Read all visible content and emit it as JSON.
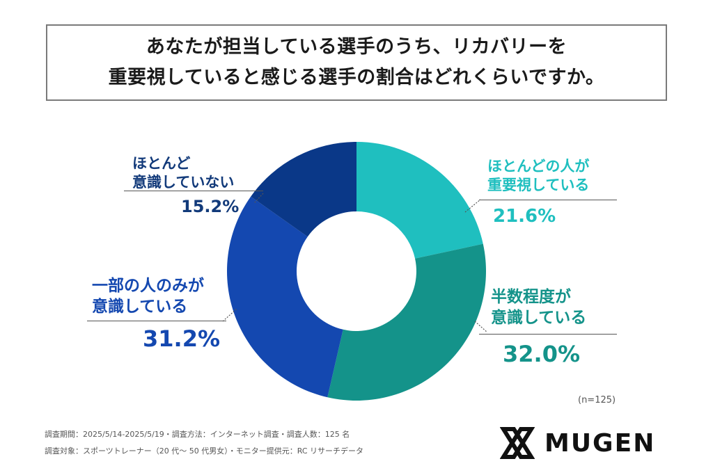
{
  "title": {
    "line1": "あなたが担当している選手のうち、リカバリーを",
    "line2": "重要視していると感じる選手の割合はどれくらいですか。"
  },
  "chart_data": {
    "type": "pie",
    "style": "donut",
    "categories": [
      "ほとんどの人が重要視している",
      "半数程度が意識している",
      "一部の人のみが意識している",
      "ほとんど意識していない"
    ],
    "values": [
      21.6,
      32.0,
      31.2,
      15.2
    ],
    "value_labels": [
      "21.6%",
      "32.0%",
      "31.2%",
      "15.2%"
    ],
    "colors": [
      "#1fbfbf",
      "#14938a",
      "#1448b0",
      "#0a3888"
    ],
    "label_colors": [
      "#1fbfbf",
      "#14938a",
      "#1448b0",
      "#123a7a"
    ],
    "label_lines": [
      [
        "ほとんどの人が",
        "重要視している"
      ],
      [
        "半数程度が",
        "意識している"
      ],
      [
        "一部の人のみが",
        "意識している"
      ],
      [
        "ほとんど",
        "意識していない"
      ]
    ],
    "n_note": "(n=125)"
  },
  "footer": {
    "line1": "調査期間：2025/5/14-2025/5/19・調査方法：インターネット調査・調査人数：125 名",
    "line2": "調査対象：スポーツトレーナー（20 代〜 50 代男女）・モニター提供元：RC リサーチデータ"
  },
  "logo": {
    "text": "MUGEN",
    "icon": "mugen-mark-icon"
  }
}
